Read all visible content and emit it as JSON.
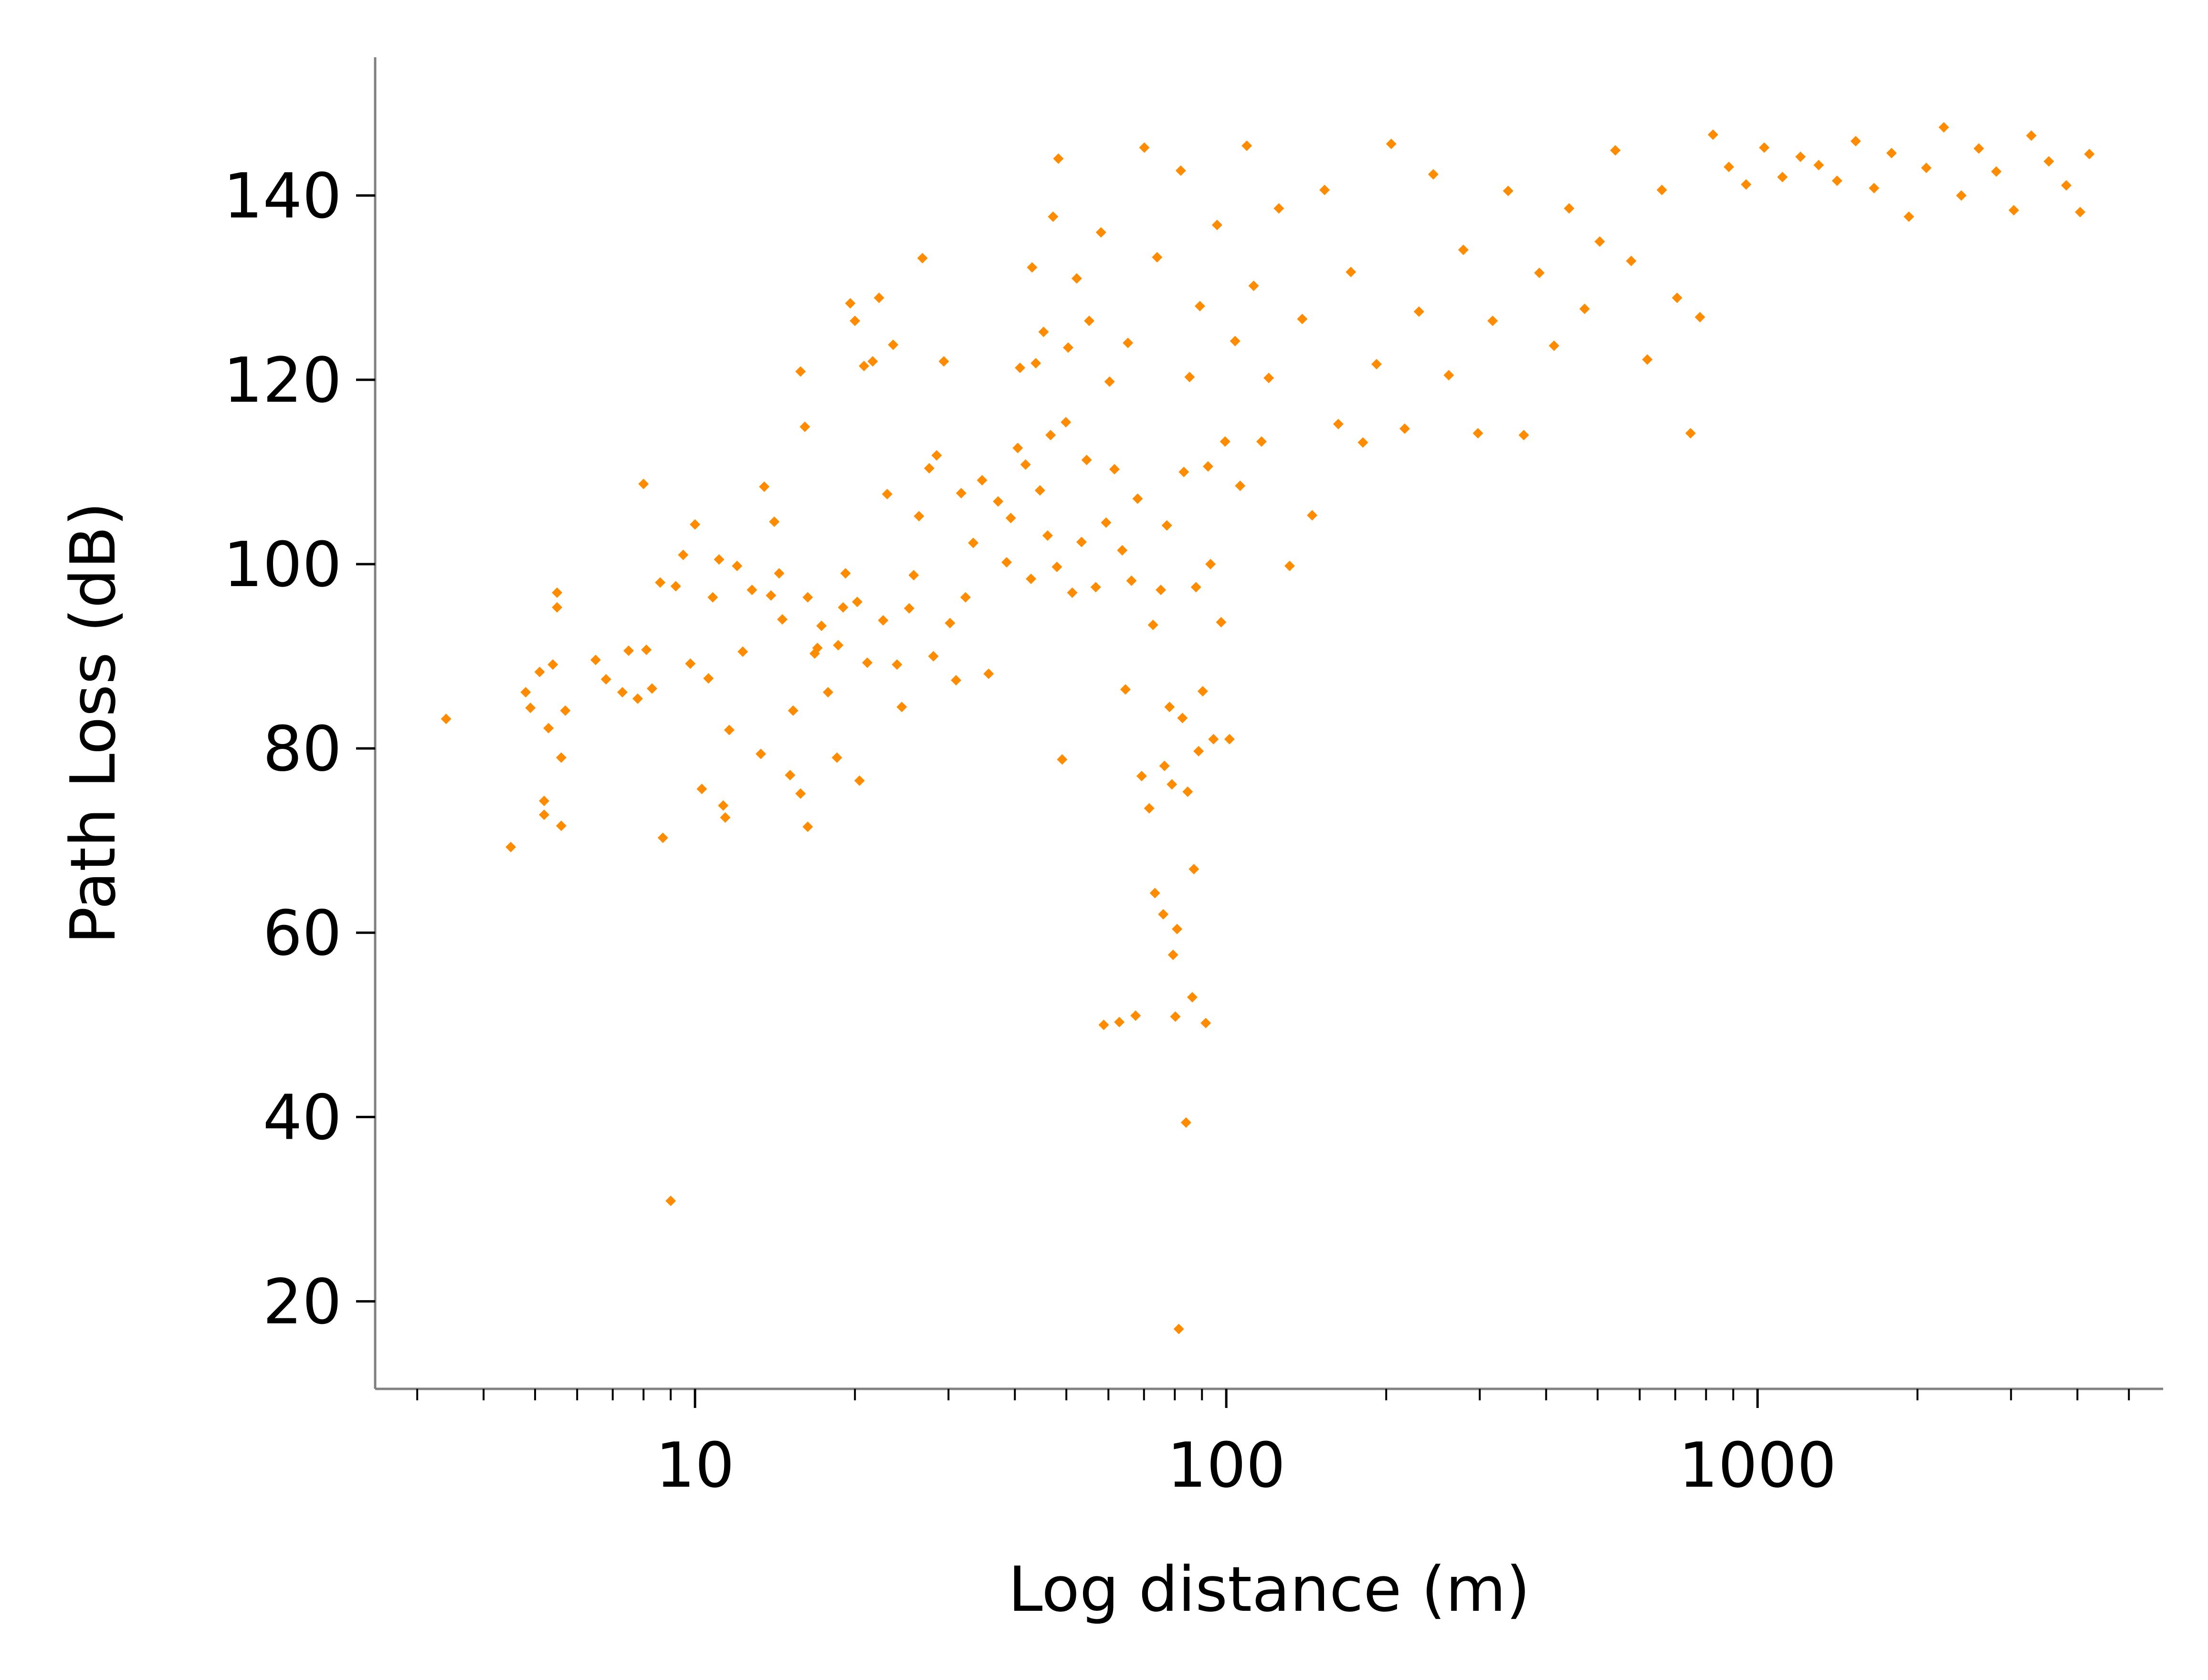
{
  "chart_data": {
    "type": "scatter",
    "title": "",
    "xlabel": "Log distance (m)",
    "ylabel": "Path Loss (dB)",
    "xscale": "log",
    "xlim": [
      2.5,
      5800
    ],
    "ylim": [
      10.5,
      155
    ],
    "xticks": [
      10,
      100,
      1000
    ],
    "xtick_labels": [
      "10",
      "100",
      "1000"
    ],
    "yticks": [
      20,
      40,
      60,
      80,
      100,
      120,
      140
    ],
    "ytick_labels": [
      "20",
      "40",
      "60",
      "80",
      "100",
      "120",
      "140"
    ],
    "grid": false,
    "legend": "none",
    "marker": "diamond",
    "colors": {
      "points": "#ff8c00",
      "axis": "#808080",
      "text": "#000000"
    },
    "series": [
      {
        "points": [
          [
            3.4,
            83.2
          ],
          [
            4.5,
            69.3
          ],
          [
            4.8,
            86.1
          ],
          [
            4.9,
            84.4
          ],
          [
            5.1,
            88.3
          ],
          [
            5.2,
            74.3
          ],
          [
            5.2,
            72.8
          ],
          [
            5.3,
            82.2
          ],
          [
            5.4,
            89.1
          ],
          [
            5.5,
            96.9
          ],
          [
            5.5,
            95.3
          ],
          [
            5.6,
            79.0
          ],
          [
            5.6,
            71.6
          ],
          [
            5.7,
            84.1
          ],
          [
            6.5,
            89.6
          ],
          [
            6.8,
            87.5
          ],
          [
            7.3,
            86.1
          ],
          [
            7.5,
            90.6
          ],
          [
            7.8,
            85.4
          ],
          [
            8.0,
            108.7
          ],
          [
            8.1,
            90.7
          ],
          [
            8.3,
            86.5
          ],
          [
            8.6,
            98.0
          ],
          [
            8.7,
            70.3
          ],
          [
            9.0,
            30.9
          ],
          [
            9.2,
            97.6
          ],
          [
            9.5,
            101.0
          ],
          [
            9.8,
            89.2
          ],
          [
            10.0,
            104.3
          ],
          [
            10.3,
            75.6
          ],
          [
            10.6,
            87.6
          ],
          [
            10.8,
            96.4
          ],
          [
            11.1,
            100.5
          ],
          [
            11.3,
            73.8
          ],
          [
            11.4,
            72.5
          ],
          [
            11.6,
            82.0
          ],
          [
            12.0,
            99.8
          ],
          [
            12.3,
            90.5
          ],
          [
            12.8,
            97.2
          ],
          [
            13.3,
            79.4
          ],
          [
            13.5,
            108.4
          ],
          [
            13.9,
            96.6
          ],
          [
            14.1,
            104.6
          ],
          [
            14.4,
            99.0
          ],
          [
            14.6,
            94.0
          ],
          [
            15.1,
            77.1
          ],
          [
            15.3,
            84.1
          ],
          [
            15.8,
            120.9
          ],
          [
            15.8,
            75.1
          ],
          [
            16.1,
            114.9
          ],
          [
            16.3,
            71.5
          ],
          [
            16.3,
            96.4
          ],
          [
            16.8,
            90.3
          ],
          [
            17.0,
            90.9
          ],
          [
            17.3,
            93.3
          ],
          [
            17.8,
            86.1
          ],
          [
            18.5,
            79.0
          ],
          [
            18.6,
            91.2
          ],
          [
            19.0,
            95.3
          ],
          [
            19.2,
            99.0
          ],
          [
            19.6,
            128.3
          ],
          [
            20.0,
            126.4
          ],
          [
            20.2,
            95.9
          ],
          [
            20.4,
            76.5
          ],
          [
            20.8,
            121.5
          ],
          [
            21.1,
            89.3
          ],
          [
            21.6,
            122.0
          ],
          [
            22.2,
            128.9
          ],
          [
            22.6,
            93.9
          ],
          [
            23.0,
            107.6
          ],
          [
            23.6,
            123.8
          ],
          [
            24.0,
            89.1
          ],
          [
            24.5,
            84.5
          ],
          [
            25.3,
            95.2
          ],
          [
            25.8,
            98.8
          ],
          [
            26.4,
            105.2
          ],
          [
            26.8,
            133.2
          ],
          [
            27.6,
            110.4
          ],
          [
            28.1,
            90.0
          ],
          [
            28.5,
            111.8
          ],
          [
            29.4,
            122.0
          ],
          [
            30.2,
            93.6
          ],
          [
            31.0,
            87.4
          ],
          [
            31.7,
            107.7
          ],
          [
            32.3,
            96.4
          ],
          [
            33.4,
            102.3
          ],
          [
            34.7,
            109.1
          ],
          [
            35.7,
            88.1
          ],
          [
            37.2,
            106.8
          ],
          [
            38.6,
            100.2
          ],
          [
            39.3,
            105.0
          ],
          [
            40.5,
            112.6
          ],
          [
            40.9,
            121.3
          ],
          [
            41.9,
            110.8
          ],
          [
            42.9,
            98.4
          ],
          [
            43.1,
            132.2
          ],
          [
            43.8,
            121.8
          ],
          [
            44.6,
            108.0
          ],
          [
            45.3,
            125.2
          ],
          [
            46.1,
            103.1
          ],
          [
            46.7,
            114.0
          ],
          [
            47.2,
            137.7
          ],
          [
            48.0,
            99.7
          ],
          [
            48.3,
            144.0
          ],
          [
            49.1,
            78.8
          ],
          [
            49.9,
            115.4
          ],
          [
            50.4,
            123.5
          ],
          [
            51.3,
            96.9
          ],
          [
            52.3,
            131.0
          ],
          [
            53.4,
            102.4
          ],
          [
            54.6,
            111.3
          ],
          [
            55.2,
            126.4
          ],
          [
            56.8,
            97.5
          ],
          [
            58.1,
            136.0
          ],
          [
            58.8,
            50.0
          ],
          [
            59.4,
            104.5
          ],
          [
            60.3,
            119.8
          ],
          [
            61.6,
            110.3
          ],
          [
            62.9,
            50.3
          ],
          [
            63.7,
            101.5
          ],
          [
            64.6,
            86.4
          ],
          [
            65.3,
            124.0
          ],
          [
            66.3,
            98.2
          ],
          [
            67.5,
            51.0
          ],
          [
            68.1,
            107.1
          ],
          [
            69.3,
            77.0
          ],
          [
            70.1,
            145.2
          ],
          [
            71.6,
            73.5
          ],
          [
            72.8,
            93.4
          ],
          [
            73.4,
            64.3
          ],
          [
            74.1,
            133.3
          ],
          [
            75.3,
            97.2
          ],
          [
            76.1,
            62.0
          ],
          [
            76.5,
            78.1
          ],
          [
            77.3,
            104.2
          ],
          [
            78.2,
            84.5
          ],
          [
            79.0,
            76.1
          ],
          [
            79.4,
            57.6
          ],
          [
            80.2,
            50.9
          ],
          [
            80.8,
            60.4
          ],
          [
            81.4,
            17.0
          ],
          [
            82.1,
            142.7
          ],
          [
            82.7,
            83.3
          ],
          [
            83.2,
            110.0
          ],
          [
            84.0,
            39.4
          ],
          [
            84.6,
            75.3
          ],
          [
            85.3,
            120.3
          ],
          [
            86.3,
            53.0
          ],
          [
            86.9,
            66.9
          ],
          [
            87.7,
            97.5
          ],
          [
            88.7,
            79.7
          ],
          [
            89.2,
            128.0
          ],
          [
            90.3,
            86.2
          ],
          [
            91.5,
            50.2
          ],
          [
            92.4,
            110.6
          ],
          [
            93.4,
            100.0
          ],
          [
            94.6,
            81.0
          ],
          [
            96.1,
            136.8
          ],
          [
            97.8,
            93.7
          ],
          [
            99.5,
            113.3
          ],
          [
            101.4,
            81.0
          ],
          [
            103.9,
            124.2
          ],
          [
            106.2,
            108.5
          ],
          [
            109.3,
            145.4
          ],
          [
            112.6,
            130.2
          ],
          [
            116.5,
            113.3
          ],
          [
            120.2,
            120.2
          ],
          [
            125.6,
            138.6
          ],
          [
            131.6,
            99.8
          ],
          [
            139.0,
            126.6
          ],
          [
            145.1,
            105.3
          ],
          [
            153.1,
            140.6
          ],
          [
            162.5,
            115.2
          ],
          [
            171.6,
            131.7
          ],
          [
            180.8,
            113.2
          ],
          [
            191.8,
            121.7
          ],
          [
            204.4,
            145.6
          ],
          [
            216.7,
            114.7
          ],
          [
            230.5,
            127.4
          ],
          [
            245.3,
            142.3
          ],
          [
            262.3,
            120.5
          ],
          [
            279.4,
            134.1
          ],
          [
            297.7,
            114.2
          ],
          [
            317.2,
            126.4
          ],
          [
            339.3,
            140.5
          ],
          [
            363.1,
            114.0
          ],
          [
            388.4,
            131.6
          ],
          [
            413.9,
            123.7
          ],
          [
            441.9,
            138.6
          ],
          [
            472.6,
            127.7
          ],
          [
            504.6,
            135.0
          ],
          [
            539.9,
            144.9
          ],
          [
            578.3,
            132.9
          ],
          [
            620.2,
            122.2
          ],
          [
            660.5,
            140.6
          ],
          [
            705.6,
            128.9
          ],
          [
            748.0,
            114.2
          ],
          [
            779.1,
            126.8
          ],
          [
            824.5,
            146.6
          ],
          [
            883.1,
            143.1
          ],
          [
            951.6,
            141.2
          ],
          [
            1029.4,
            145.2
          ],
          [
            1113.9,
            142.0
          ],
          [
            1204.6,
            144.2
          ],
          [
            1303.5,
            143.3
          ],
          [
            1411.6,
            141.6
          ],
          [
            1530.2,
            145.9
          ],
          [
            1657.0,
            140.8
          ],
          [
            1787.4,
            144.6
          ],
          [
            1927.0,
            137.7
          ],
          [
            2078.1,
            143.0
          ],
          [
            2241.8,
            147.4
          ],
          [
            2418.5,
            140.0
          ],
          [
            2609.1,
            145.1
          ],
          [
            2814.5,
            142.6
          ],
          [
            3036.2,
            138.4
          ],
          [
            3275.9,
            146.5
          ],
          [
            3534.1,
            143.7
          ],
          [
            3812.0,
            141.1
          ],
          [
            4048.0,
            138.2
          ],
          [
            4212.5,
            144.5
          ]
        ]
      }
    ]
  }
}
